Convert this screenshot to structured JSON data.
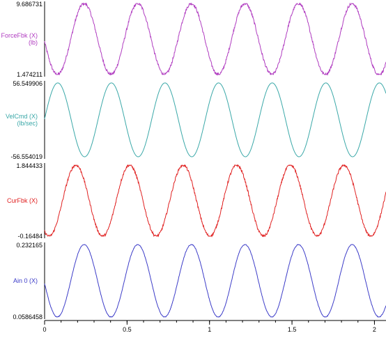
{
  "chart_data": [
    {
      "type": "line",
      "title": "",
      "series": [
        {
          "name": "ForceFbk (X)",
          "unit": "(lb)"
        }
      ],
      "ylim": [
        1.474211,
        9.686731
      ],
      "ymax_label": "9.686731",
      "ymin_label": "1.474211",
      "color": "#b03cc0",
      "signal": {
        "shape": "sine",
        "period": 0.325,
        "peak_at": 0.24,
        "min": 1.474211,
        "max": 9.686731,
        "noise": 0.04
      }
    },
    {
      "type": "line",
      "title": "",
      "series": [
        {
          "name": "VelCmd (X)",
          "unit": "(lb/sec)"
        }
      ],
      "ylim": [
        -56.554019,
        56.549906
      ],
      "ymax_label": "56.549906",
      "ymin_label": "-56.554019",
      "color": "#3aa8a8",
      "signal": {
        "shape": "sine",
        "period": 0.325,
        "peak_at": 0.08,
        "min": -56.554019,
        "max": 56.549906,
        "noise": 0.0
      }
    },
    {
      "type": "line",
      "title": "",
      "series": [
        {
          "name": "CurFbk (X)",
          "unit": ""
        }
      ],
      "ylim": [
        -0.16484,
        1.844433
      ],
      "ymax_label": "1.844433",
      "ymin_label": "-0.16484",
      "color": "#e02020",
      "signal": {
        "shape": "sine",
        "period": 0.325,
        "peak_at": 0.19,
        "min": -0.16484,
        "max": 1.844433,
        "noise": 0.035
      }
    },
    {
      "type": "line",
      "title": "",
      "series": [
        {
          "name": "Ain 0 (X)",
          "unit": ""
        }
      ],
      "ylim": [
        0.0586458,
        0.232165
      ],
      "ymax_label": "0.232165",
      "ymin_label": "0.0586458",
      "color": "#3c3cc8",
      "signal": {
        "shape": "sine",
        "period": 0.325,
        "peak_at": 0.24,
        "min": 0.0586458,
        "max": 0.232165,
        "noise": 0.01
      }
    }
  ],
  "x_axis": {
    "xlim": [
      0,
      2.07
    ],
    "ticks": [
      0,
      0.5,
      1,
      1.5,
      2
    ],
    "tick_labels": [
      "0",
      "0.5",
      "1",
      "1.5",
      "2"
    ]
  }
}
